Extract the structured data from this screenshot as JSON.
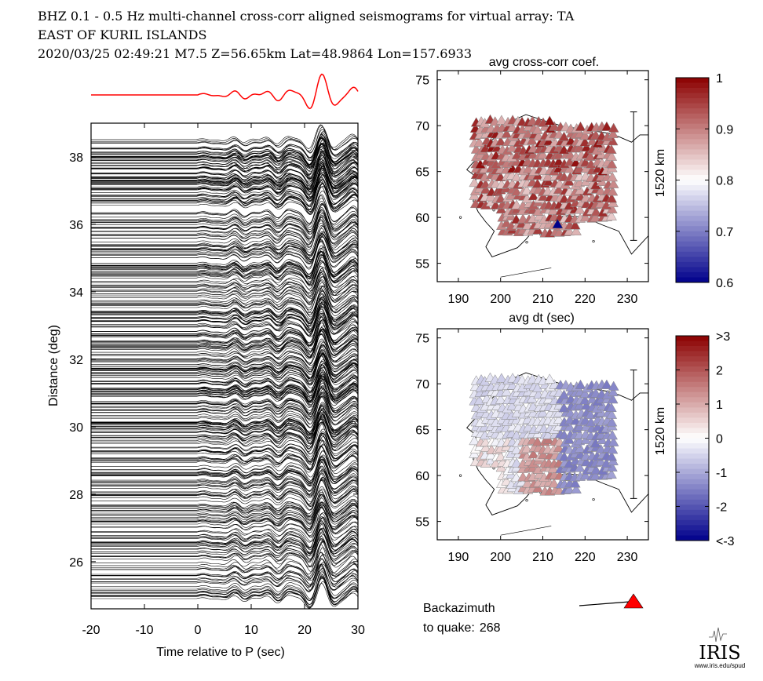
{
  "header": {
    "line1": "BHZ  0.1 - 0.5 Hz  multi-channel cross-corr aligned seismograms for virtual array: TA",
    "line2": "EAST OF KURIL ISLANDS",
    "line3": "2020/03/25  02:49:21  M7.5  Z=56.65km Lat=48.9864 Lon=157.6933"
  },
  "colors": {
    "trace": "#000000",
    "stack": "#ff0000",
    "backazimuth_arrow": "#ff0000",
    "high": "#8b0000",
    "low": "#00008b",
    "mid": "#ffffff"
  },
  "chart_data": [
    {
      "type": "line",
      "name": "aligned-seismograms",
      "title": "",
      "xlabel": "Time relative to P (sec)",
      "ylabel": "Distance (deg)",
      "xlim": [
        -20,
        30
      ],
      "ylim": [
        24.6,
        39.0
      ],
      "xticks": [
        -20,
        -10,
        0,
        10,
        20,
        30
      ],
      "yticks": [
        26,
        28,
        30,
        32,
        34,
        36,
        38
      ],
      "stack_trace": "red beamformed stack above panel",
      "trace_count_estimate": 400,
      "trace_distance_range": [
        24.9,
        38.6
      ]
    },
    {
      "type": "scatter",
      "name": "avg-cross-corr-map",
      "title": "avg cross-corr coef.",
      "xlabel": "",
      "xlim": [
        185,
        235
      ],
      "ylim": [
        53,
        76
      ],
      "xticks": [
        190,
        200,
        210,
        220,
        230
      ],
      "yticks": [
        55,
        60,
        65,
        70,
        75
      ],
      "scale_label": "1520 km",
      "colorbar": {
        "min": 0.6,
        "max": 1.0,
        "tick_labels": [
          "1",
          "0.9",
          "0.8",
          "0.7",
          "0.6"
        ]
      },
      "stations": "~400 TA stations across Alaska and NW Canada, mostly 0.85-0.95; one low value near 213.5E 59.5N"
    },
    {
      "type": "scatter",
      "name": "avg-dt-map",
      "title": "avg dt (sec)",
      "xlabel": "",
      "xlim": [
        185,
        235
      ],
      "ylim": [
        53,
        76
      ],
      "xticks": [
        190,
        200,
        210,
        220,
        230
      ],
      "yticks": [
        55,
        60,
        65,
        70,
        75
      ],
      "scale_label": "1520 km",
      "colorbar": {
        "min": -3,
        "max": 3,
        "tick_labels": [
          ">3",
          "2",
          "1",
          "0",
          "-1",
          "-2",
          "<-3"
        ]
      },
      "stations": "positive (red) in south-central Alaska, negative (blue) to the east"
    }
  ],
  "backazimuth": {
    "label_line1": "Backazimuth",
    "label_line2": "to quake:",
    "value": "268"
  },
  "logo": {
    "name": "IRIS",
    "url_text": "www.iris.edu/spud"
  }
}
